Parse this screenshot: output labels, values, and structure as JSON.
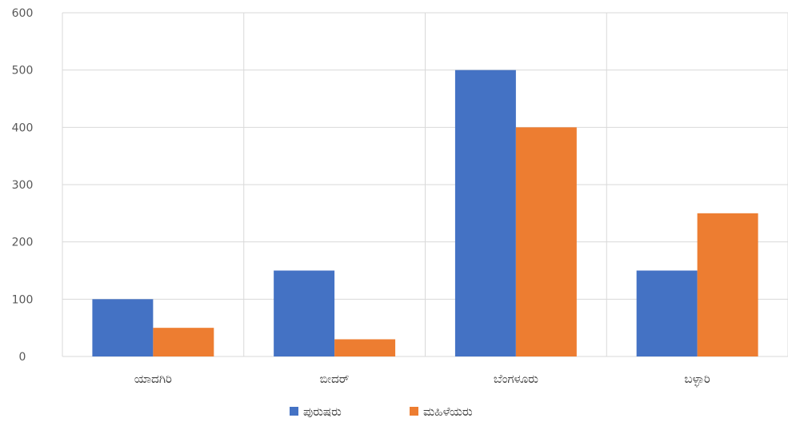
{
  "chart_data": {
    "type": "bar",
    "categories": [
      "ಯಾದಗಿರಿ",
      "ಬೀದರ್",
      "ಬೆಂಗಳೂರು",
      "ಬಳ್ಳಾರಿ"
    ],
    "series": [
      {
        "name": "ಪುರುಷರು",
        "values": [
          100,
          150,
          500,
          150
        ],
        "color": "#4472C4"
      },
      {
        "name": "ಮಹಿಳೆಯರು",
        "values": [
          50,
          30,
          400,
          250
        ],
        "color": "#ED7D31"
      }
    ],
    "ylim": [
      0,
      600
    ],
    "yticks": [
      0,
      100,
      200,
      300,
      400,
      500,
      600
    ],
    "grid": true,
    "legend_position": "bottom",
    "title": "",
    "xlabel": "",
    "ylabel": ""
  }
}
